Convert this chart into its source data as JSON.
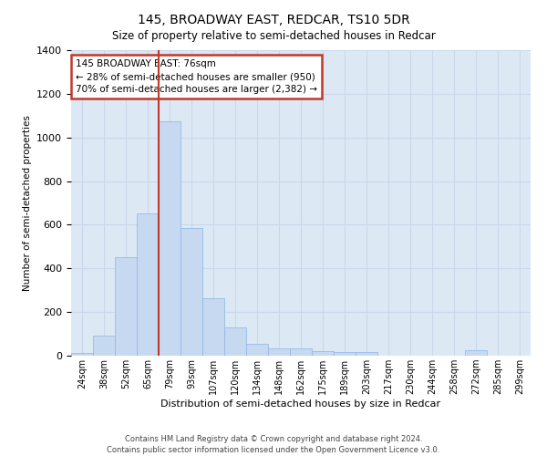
{
  "title": "145, BROADWAY EAST, REDCAR, TS10 5DR",
  "subtitle": "Size of property relative to semi-detached houses in Redcar",
  "xlabel": "Distribution of semi-detached houses by size in Redcar",
  "ylabel": "Number of semi-detached properties",
  "footer1": "Contains HM Land Registry data © Crown copyright and database right 2024.",
  "footer2": "Contains public sector information licensed under the Open Government Licence v3.0.",
  "annotation_title": "145 BROADWAY EAST: 76sqm",
  "annotation_line1": "← 28% of semi-detached houses are smaller (950)",
  "annotation_line2": "70% of semi-detached houses are larger (2,382) →",
  "bar_color": "#c6d9f1",
  "bar_edge_color": "#8db4e2",
  "vline_color": "#c0392b",
  "annotation_box_color": "#c0392b",
  "categories": [
    "24sqm",
    "38sqm",
    "52sqm",
    "65sqm",
    "79sqm",
    "93sqm",
    "107sqm",
    "120sqm",
    "134sqm",
    "148sqm",
    "162sqm",
    "175sqm",
    "189sqm",
    "203sqm",
    "217sqm",
    "230sqm",
    "244sqm",
    "258sqm",
    "272sqm",
    "285sqm",
    "299sqm"
  ],
  "values": [
    12,
    90,
    450,
    650,
    1075,
    585,
    265,
    130,
    55,
    35,
    35,
    20,
    15,
    15,
    0,
    0,
    0,
    0,
    25,
    0,
    0
  ],
  "ylim": [
    0,
    1400
  ],
  "yticks": [
    0,
    200,
    400,
    600,
    800,
    1000,
    1200,
    1400
  ],
  "vline_x_index": 4,
  "grid_color": "#c8d8ea",
  "bg_color": "#dce9f5"
}
